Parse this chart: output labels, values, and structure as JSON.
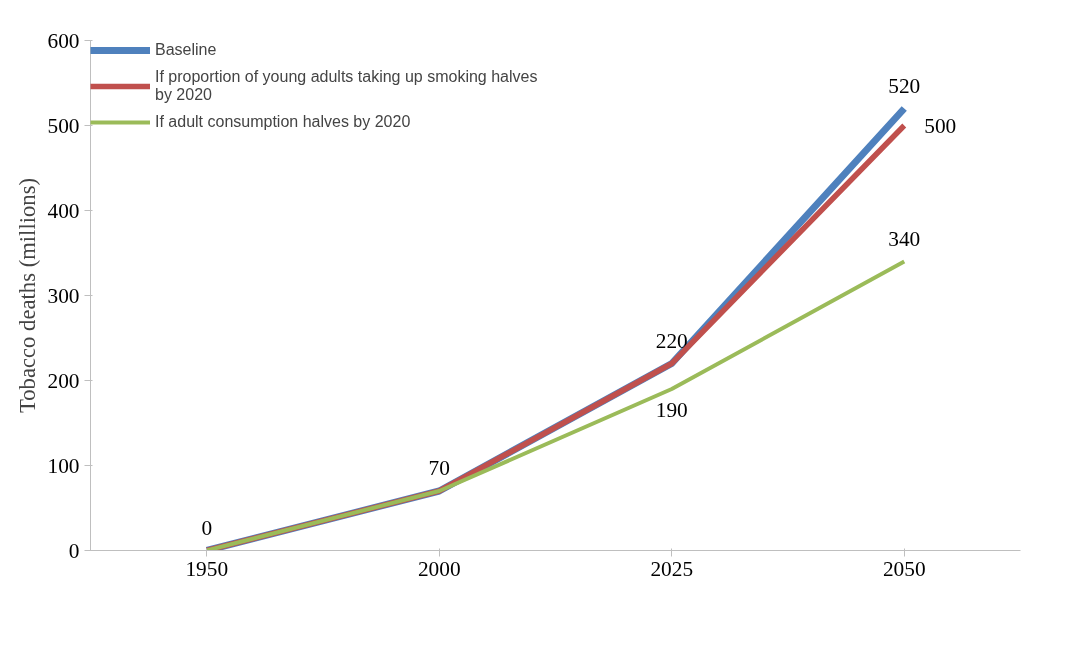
{
  "chart_data": {
    "type": "line",
    "ylabel": "Tobacco deaths (millions)",
    "categories": [
      "1950",
      "2000",
      "2025",
      "2050"
    ],
    "series": [
      {
        "name": "Baseline",
        "color": "#4f81bd",
        "values": [
          0,
          70,
          220,
          520
        ],
        "value_labels": [
          "0",
          "70",
          "220",
          "520"
        ]
      },
      {
        "name": "If proportion of young adults taking up smoking halves by 2020",
        "color": "#c0504d",
        "values": [
          0,
          70,
          220,
          500
        ],
        "value_labels": [
          null,
          null,
          null,
          "500"
        ]
      },
      {
        "name": "If adult consumption halves by 2020",
        "color": "#9bbb59",
        "values": [
          0,
          70,
          190,
          340
        ],
        "value_labels": [
          null,
          null,
          "190",
          "340"
        ]
      }
    ],
    "ylim": [
      0,
      600
    ],
    "yticks": [
      0,
      100,
      200,
      300,
      400,
      500,
      600
    ],
    "grid": false,
    "legend": "top left",
    "marker": "none",
    "line_style": "solid"
  }
}
